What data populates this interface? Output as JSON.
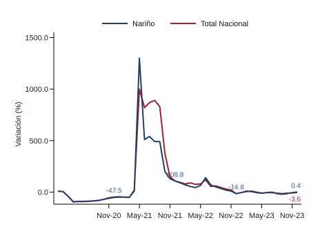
{
  "chart_data": {
    "type": "line",
    "ylabel": "Variación (%)",
    "xlabel": "",
    "ylim": [
      -100,
      1500
    ],
    "yticks": [
      0,
      500,
      1000,
      1500
    ],
    "ytick_labels": [
      "0.0",
      "500.0",
      "1000.0",
      "1500.0"
    ],
    "xtick_labels": [
      "Nov-20",
      "May-21",
      "Nov-21",
      "May-22",
      "Nov-22",
      "May-23",
      "Nov-23"
    ],
    "xtick_index": [
      10,
      16,
      22,
      28,
      34,
      40,
      46
    ],
    "legend_position": "top",
    "grid": false,
    "series": [
      {
        "name": "Nariño",
        "color": "#1f3f66",
        "values": [
          10,
          5,
          -40,
          -95,
          -90,
          -90,
          -88,
          -85,
          -80,
          -70,
          -55,
          -47.5,
          -45,
          -48,
          -50,
          10,
          1300,
          510,
          540,
          490,
          490,
          200,
          130,
          108.8,
          90,
          70,
          55,
          45,
          65,
          140,
          70,
          50,
          35,
          20,
          10,
          -14.8,
          -5,
          10,
          5,
          -5,
          -10,
          -5,
          0,
          -15,
          -20,
          -15,
          -5,
          0.4
        ]
      },
      {
        "name": "Total Nacional",
        "color": "#a1212c",
        "values": [
          8,
          5,
          -40,
          -92,
          -92,
          -92,
          -90,
          -85,
          -82,
          -70,
          -60,
          -52,
          -48,
          -48,
          -52,
          20,
          1000,
          820,
          870,
          890,
          830,
          380,
          150,
          108.8,
          95,
          80,
          90,
          75,
          80,
          120,
          55,
          60,
          45,
          30,
          20,
          -14.8,
          -5,
          5,
          10,
          0,
          -10,
          -5,
          -5,
          -10,
          -15,
          -10,
          -8,
          -3.6
        ]
      }
    ],
    "annotations": [
      {
        "text": "-47.5",
        "index": 11,
        "value": -47.5,
        "series": 0,
        "color": "#3b5e86"
      },
      {
        "text": "108.8",
        "index": 23,
        "value": 108.8,
        "series": 0,
        "color": "#3b5e86"
      },
      {
        "text": "-14.8",
        "index": 35,
        "value": -14.8,
        "series": 0,
        "color": "#3b5e86"
      },
      {
        "text": "0.4",
        "index": 47,
        "value": 0.4,
        "series": 0,
        "color": "#3b5e86"
      },
      {
        "text": "-3.6",
        "index": 47,
        "value": -3.6,
        "series": 1,
        "color": "#c0243a"
      }
    ]
  }
}
